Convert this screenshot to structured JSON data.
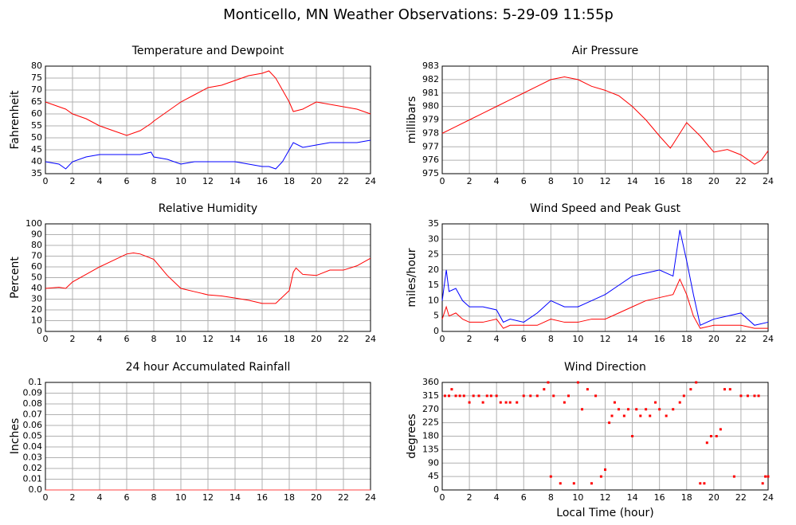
{
  "title": "Monticello, MN Weather Observations: 5-29-09 11:55p",
  "chart_data": [
    {
      "type": "line",
      "title": "Temperature and Dewpoint",
      "ylabel": "Fahrenheit",
      "x": [
        0,
        1,
        1.5,
        2,
        3,
        4,
        5,
        6,
        7,
        7.8,
        8,
        9,
        10,
        11,
        12,
        13,
        14,
        15,
        16,
        16.5,
        17,
        17.5,
        18,
        18.3,
        19,
        20,
        21,
        22,
        23,
        24
      ],
      "series": [
        {
          "color": "#ff0000",
          "values": [
            65,
            63,
            62,
            60,
            58,
            55,
            53,
            51,
            53,
            56,
            57,
            61,
            65,
            68,
            71,
            72,
            74,
            76,
            77,
            78,
            75,
            70,
            65,
            61,
            62,
            65,
            64,
            63,
            62,
            60
          ]
        },
        {
          "color": "#0000ff",
          "values": [
            40,
            39,
            37,
            40,
            42,
            43,
            43,
            43,
            43,
            44,
            42,
            41,
            39,
            40,
            40,
            40,
            40,
            39,
            38,
            38,
            37,
            40,
            45,
            48,
            46,
            47,
            48,
            48,
            48,
            49
          ]
        }
      ],
      "xlim": [
        0,
        24
      ],
      "xticks": [
        0,
        2,
        4,
        6,
        8,
        10,
        12,
        14,
        16,
        18,
        20,
        22,
        24
      ],
      "ylim": [
        35,
        80
      ],
      "yticks": [
        35,
        40,
        45,
        50,
        55,
        60,
        65,
        70,
        75,
        80
      ],
      "grid": true
    },
    {
      "type": "line",
      "title": "Air Pressure",
      "ylabel": "millibars",
      "x": [
        0,
        1,
        2,
        3,
        4,
        5,
        6,
        7,
        8,
        9,
        10,
        11,
        12,
        13,
        14,
        15,
        16,
        16.8,
        17,
        18,
        19,
        20,
        21,
        22,
        23,
        23.5,
        24
      ],
      "series": [
        {
          "color": "#ff0000",
          "values": [
            978,
            978.5,
            979,
            979.5,
            980,
            980.5,
            981,
            981.5,
            982,
            982.2,
            982,
            981.5,
            981.2,
            980.8,
            980,
            979,
            977.8,
            976.9,
            977.2,
            978.8,
            977.8,
            976.6,
            976.8,
            976.4,
            975.7,
            976,
            976.7
          ]
        }
      ],
      "xlim": [
        0,
        24
      ],
      "xticks": [
        0,
        2,
        4,
        6,
        8,
        10,
        12,
        14,
        16,
        18,
        20,
        22,
        24
      ],
      "ylim": [
        975,
        983
      ],
      "yticks": [
        975,
        976,
        977,
        978,
        979,
        980,
        981,
        982,
        983
      ],
      "grid": true
    },
    {
      "type": "line",
      "title": "Relative Humidity",
      "ylabel": "Percent",
      "x": [
        0,
        1,
        1.5,
        2,
        3,
        4,
        5,
        6,
        6.5,
        7,
        8,
        9,
        10,
        11,
        12,
        13,
        14,
        15,
        16,
        17,
        18,
        18.3,
        18.5,
        19,
        20,
        21,
        22,
        23,
        24
      ],
      "series": [
        {
          "color": "#ff0000",
          "values": [
            40,
            41,
            40,
            46,
            53,
            60,
            66,
            72,
            73,
            72,
            67,
            52,
            40,
            37,
            34,
            33,
            31,
            29,
            26,
            26,
            38,
            55,
            59,
            53,
            52,
            57,
            57,
            61,
            68
          ]
        }
      ],
      "xlim": [
        0,
        24
      ],
      "xticks": [
        0,
        2,
        4,
        6,
        8,
        10,
        12,
        14,
        16,
        18,
        20,
        22,
        24
      ],
      "ylim": [
        0,
        100
      ],
      "yticks": [
        0,
        10,
        20,
        30,
        40,
        50,
        60,
        70,
        80,
        90,
        100
      ],
      "grid": true
    },
    {
      "type": "line",
      "title": "Wind Speed and Peak Gust",
      "ylabel": "miles/hour",
      "x": [
        0,
        0.3,
        0.5,
        1,
        1.5,
        2,
        3,
        4,
        4.5,
        5,
        6,
        7,
        8,
        9,
        10,
        11,
        12,
        13,
        14,
        15,
        16,
        17,
        17.5,
        18,
        18.5,
        19,
        20,
        21,
        22,
        23,
        24
      ],
      "series": [
        {
          "color": "#0000ff",
          "values": [
            10,
            20,
            13,
            14,
            10,
            8,
            8,
            7,
            3,
            4,
            3,
            6,
            10,
            8,
            8,
            10,
            12,
            15,
            18,
            19,
            20,
            18,
            33,
            23,
            12,
            2,
            4,
            5,
            6,
            2,
            3
          ]
        },
        {
          "color": "#ff0000",
          "values": [
            4,
            8,
            5,
            6,
            4,
            3,
            3,
            4,
            1,
            2,
            2,
            2,
            4,
            3,
            3,
            4,
            4,
            6,
            8,
            10,
            11,
            12,
            17,
            12,
            5,
            1,
            2,
            2,
            2,
            1,
            1
          ]
        }
      ],
      "xlim": [
        0,
        24
      ],
      "xticks": [
        0,
        2,
        4,
        6,
        8,
        10,
        12,
        14,
        16,
        18,
        20,
        22,
        24
      ],
      "ylim": [
        0,
        35
      ],
      "yticks": [
        0,
        5,
        10,
        15,
        20,
        25,
        30,
        35
      ],
      "grid": true
    },
    {
      "type": "line",
      "title": "24 hour Accumulated Rainfall",
      "ylabel": "Inches",
      "x": [
        0,
        24
      ],
      "series": [
        {
          "color": "#ff4040",
          "values": [
            0,
            0
          ]
        }
      ],
      "xlim": [
        0,
        24
      ],
      "xticks": [
        0,
        2,
        4,
        6,
        8,
        10,
        12,
        14,
        16,
        18,
        20,
        22,
        24
      ],
      "ylim": [
        0,
        0.1
      ],
      "yticks": [
        {
          "value": 0,
          "label": "0.0"
        },
        0.01,
        0.02,
        0.03,
        0.04,
        0.05,
        0.06,
        0.07,
        0.08,
        0.09,
        0.1
      ],
      "grid": true
    },
    {
      "type": "scatter",
      "title": "Wind Direction",
      "ylabel": "degrees",
      "xlabel": "Local Time (hour)",
      "x": [
        0.2,
        0.5,
        0.7,
        1,
        1.3,
        1.6,
        2,
        2.3,
        2.7,
        3,
        3.3,
        3.6,
        4,
        4.3,
        4.7,
        5,
        5.5,
        6,
        6.5,
        7,
        7.5,
        7.8,
        8,
        8.2,
        8.7,
        9,
        9.3,
        9.7,
        10,
        10.3,
        10.7,
        11,
        11.3,
        11.7,
        12,
        12.3,
        12.5,
        12.7,
        13,
        13.4,
        13.7,
        14,
        14.3,
        14.6,
        15,
        15.3,
        15.7,
        16,
        16.5,
        17,
        17.5,
        17.8,
        18.3,
        18.7,
        19,
        19.3,
        19.5,
        19.8,
        20.2,
        20.5,
        20.8,
        21.2,
        21.5,
        22,
        22.5,
        23,
        23.3,
        23.6,
        23.8,
        24
      ],
      "series": [
        {
          "color": "#ff0000",
          "values": [
            315,
            315,
            337,
            315,
            315,
            315,
            293,
            315,
            315,
            293,
            315,
            315,
            315,
            293,
            293,
            293,
            293,
            315,
            315,
            315,
            337,
            360,
            45,
            315,
            22,
            293,
            315,
            22,
            360,
            270,
            337,
            22,
            315,
            45,
            68,
            225,
            248,
            293,
            270,
            248,
            270,
            180,
            270,
            248,
            270,
            248,
            293,
            270,
            248,
            270,
            293,
            315,
            337,
            360,
            22,
            22,
            158,
            180,
            180,
            203,
            337,
            337,
            45,
            315,
            315,
            315,
            315,
            22,
            45,
            45
          ]
        }
      ],
      "xlim": [
        0,
        24
      ],
      "xticks": [
        0,
        2,
        4,
        6,
        8,
        10,
        12,
        14,
        16,
        18,
        20,
        22,
        24
      ],
      "ylim": [
        0,
        360
      ],
      "yticks": [
        0,
        45,
        90,
        135,
        180,
        225,
        270,
        315,
        360
      ],
      "grid": true
    }
  ]
}
